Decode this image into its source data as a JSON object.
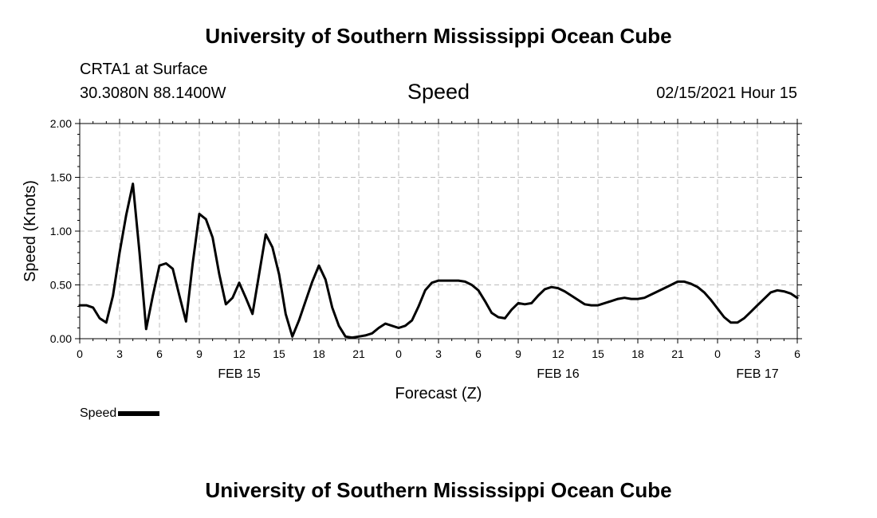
{
  "header": {
    "title_top": "University of Southern Mississippi Ocean Cube",
    "station": "CRTA1 at Surface",
    "coords": "30.3080N 88.1400W",
    "variable": "Speed",
    "datetime": "02/15/2021 Hour 15",
    "title_bottom": "University of Southern Mississippi Ocean Cube"
  },
  "legend": {
    "label": "Speed",
    "color": "#000000"
  },
  "chart_data": {
    "type": "line",
    "title": "Speed",
    "xlabel": "Forecast (Z)",
    "ylabel": "Speed (Knots)",
    "xlim": [
      0,
      54
    ],
    "ylim": [
      0,
      2
    ],
    "grid": true,
    "yticks": [
      0,
      0.5,
      1,
      1.5,
      2
    ],
    "ytick_labels": [
      "0.00",
      "0.50",
      "1.00",
      "1.50",
      "2.00"
    ],
    "xticks": [
      0,
      3,
      6,
      9,
      12,
      15,
      18,
      21,
      24,
      27,
      30,
      33,
      36,
      39,
      42,
      45,
      48,
      51,
      54
    ],
    "xtick_labels": [
      "0",
      "3",
      "6",
      "9",
      "12",
      "15",
      "18",
      "21",
      "0",
      "3",
      "6",
      "9",
      "12",
      "15",
      "18",
      "21",
      "0",
      "3",
      "6"
    ],
    "date_labels": [
      {
        "x": 12,
        "label": "FEB 15"
      },
      {
        "x": 36,
        "label": "FEB 16"
      },
      {
        "x": 51,
        "label": "FEB 17"
      }
    ],
    "series": [
      {
        "name": "Speed",
        "color": "#000000",
        "x": [
          0,
          0.5,
          1,
          1.5,
          2,
          2.5,
          3,
          3.5,
          4,
          4.5,
          5,
          5.5,
          6,
          6.5,
          7,
          7.5,
          8,
          8.5,
          9,
          9.5,
          10,
          10.5,
          11,
          11.5,
          12,
          12.5,
          13,
          13.5,
          14,
          14.5,
          15,
          15.5,
          16,
          16.5,
          17,
          17.5,
          18,
          18.5,
          19,
          19.5,
          20,
          20.5,
          21,
          21.5,
          22,
          22.5,
          23,
          23.5,
          24,
          24.5,
          25,
          25.5,
          26,
          26.5,
          27,
          27.5,
          28,
          28.5,
          29,
          29.5,
          30,
          30.5,
          31,
          31.5,
          32,
          32.5,
          33,
          33.5,
          34,
          34.5,
          35,
          35.5,
          36,
          36.5,
          37,
          37.5,
          38,
          38.5,
          39,
          39.5,
          40,
          40.5,
          41,
          41.5,
          42,
          42.5,
          43,
          43.5,
          44,
          44.5,
          45,
          45.5,
          46,
          46.5,
          47,
          47.5,
          48,
          48.5,
          49,
          49.5,
          50,
          50.5,
          51,
          51.5,
          52,
          52.5,
          53,
          53.5,
          54
        ],
        "y": [
          0.31,
          0.31,
          0.29,
          0.19,
          0.15,
          0.4,
          0.8,
          1.15,
          1.44,
          0.8,
          0.09,
          0.4,
          0.68,
          0.7,
          0.65,
          0.4,
          0.16,
          0.7,
          1.16,
          1.11,
          0.94,
          0.6,
          0.32,
          0.38,
          0.52,
          0.38,
          0.23,
          0.6,
          0.97,
          0.85,
          0.6,
          0.23,
          0.02,
          0.17,
          0.35,
          0.53,
          0.68,
          0.55,
          0.29,
          0.12,
          0.02,
          0.01,
          0.02,
          0.03,
          0.05,
          0.1,
          0.14,
          0.12,
          0.1,
          0.12,
          0.17,
          0.3,
          0.45,
          0.52,
          0.54,
          0.54,
          0.54,
          0.54,
          0.53,
          0.5,
          0.45,
          0.35,
          0.24,
          0.2,
          0.19,
          0.27,
          0.33,
          0.32,
          0.33,
          0.4,
          0.46,
          0.48,
          0.47,
          0.44,
          0.4,
          0.36,
          0.32,
          0.31,
          0.31,
          0.33,
          0.35,
          0.37,
          0.38,
          0.37,
          0.37,
          0.38,
          0.41,
          0.44,
          0.47,
          0.5,
          0.53,
          0.53,
          0.51,
          0.48,
          0.43,
          0.36,
          0.28,
          0.2,
          0.15,
          0.15,
          0.19,
          0.25,
          0.31,
          0.37,
          0.43,
          0.45,
          0.44,
          0.42,
          0.38
        ]
      }
    ]
  }
}
